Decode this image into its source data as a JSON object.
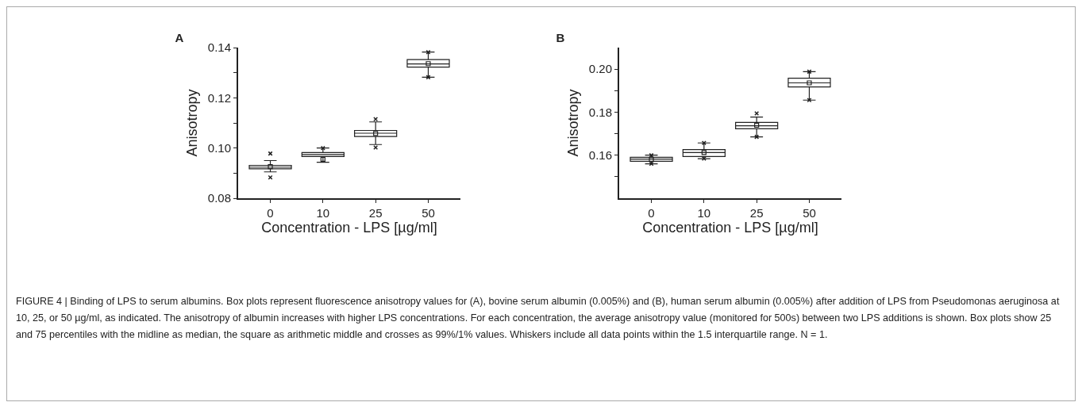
{
  "chart_data": [
    {
      "type": "box",
      "title": "A",
      "xlabel": "Concentration - LPS [µg/ml]",
      "ylabel": "Anisotropy",
      "categories": [
        "0",
        "10",
        "25",
        "50"
      ],
      "color": "#222222",
      "marker": "cross",
      "grid": false,
      "ylim": [
        0.08,
        0.14
      ],
      "yticks": [
        {
          "value": 0.08,
          "label": "0.08"
        },
        {
          "value": 0.09,
          "label": null
        },
        {
          "value": 0.1,
          "label": "0.10"
        },
        {
          "value": 0.11,
          "label": null
        },
        {
          "value": 0.12,
          "label": "0.12"
        },
        {
          "value": 0.13,
          "label": null
        },
        {
          "value": 0.14,
          "label": "0.14"
        }
      ],
      "boxes": [
        {
          "low": 0.0905,
          "q1": 0.0917,
          "median": 0.0924,
          "q3": 0.0931,
          "high": 0.095,
          "mean": 0.0926,
          "outliers": [
            0.0978,
            0.0883
          ]
        },
        {
          "low": 0.0943,
          "q1": 0.0966,
          "median": 0.0974,
          "q3": 0.0982,
          "high": 0.1,
          "mean": 0.0955,
          "outliers": [
            0.1
          ]
        },
        {
          "low": 0.1014,
          "q1": 0.1046,
          "median": 0.1059,
          "q3": 0.107,
          "high": 0.1104,
          "mean": 0.1058,
          "outliers": [
            0.1115,
            0.1002
          ]
        },
        {
          "low": 0.1282,
          "q1": 0.1322,
          "median": 0.1335,
          "q3": 0.1352,
          "high": 0.1382,
          "mean": 0.1336,
          "outliers": [
            0.1382,
            0.1282
          ]
        }
      ]
    },
    {
      "type": "box",
      "title": "B",
      "xlabel": "Concentration - LPS [µg/ml]",
      "ylabel": "Anisotropy",
      "categories": [
        "0",
        "10",
        "25",
        "50"
      ],
      "color": "#222222",
      "marker": "cross",
      "grid": false,
      "ylim": [
        0.14,
        0.21
      ],
      "yticks": [
        {
          "value": 0.15,
          "label": null
        },
        {
          "value": 0.16,
          "label": "0.16"
        },
        {
          "value": 0.17,
          "label": null
        },
        {
          "value": 0.18,
          "label": "0.18"
        },
        {
          "value": 0.19,
          "label": null
        },
        {
          "value": 0.2,
          "label": "0.20"
        }
      ],
      "boxes": [
        {
          "low": 0.156,
          "q1": 0.1572,
          "median": 0.1582,
          "q3": 0.159,
          "high": 0.16,
          "mean": 0.158,
          "outliers": [
            0.16,
            0.156
          ]
        },
        {
          "low": 0.1584,
          "q1": 0.1594,
          "median": 0.1612,
          "q3": 0.1626,
          "high": 0.1657,
          "mean": 0.1612,
          "outliers": [
            0.1657,
            0.1584
          ]
        },
        {
          "low": 0.1685,
          "q1": 0.1723,
          "median": 0.1737,
          "q3": 0.1752,
          "high": 0.1777,
          "mean": 0.1739,
          "outliers": [
            0.1794,
            0.1685
          ]
        },
        {
          "low": 0.1856,
          "q1": 0.1917,
          "median": 0.1936,
          "q3": 0.1958,
          "high": 0.1988,
          "mean": 0.1936,
          "outliers": [
            0.1988,
            0.1856
          ]
        }
      ],
      "annotations": [
        "FIGURE 4 | Binding of LPS to serum albumins. Box plots represent fluorescence anisotropy values for (A), bovine serum albumin (0.005%) and (B), human serum albumin (0.005%) after addition of LPS from Pseudomonas aeruginosa at 10, 25, or 50 µg/ml, as indicated. The anisotropy of albumin increases with higher LPS concentrations. For each concentration, the average anisotropy value (monitored for 500s) between two LPS additions is shown. Box plots show 25 and 75 percentiles with the midline as median, the square as arithmetic middle and crosses as 99%/1% values. Whiskers include all data points within the 1.5 interquartile range. N = 1."
      ]
    }
  ]
}
